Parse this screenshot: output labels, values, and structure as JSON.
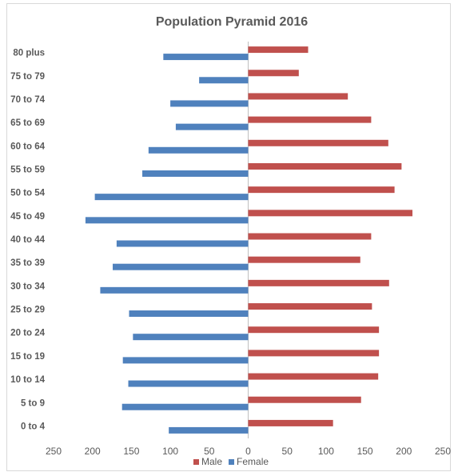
{
  "chart_data": {
    "type": "bar",
    "orientation": "horizontal",
    "title": "Population Pyramid 2016",
    "categories": [
      "0 to 4",
      "5 to 9",
      "10 to 14",
      "15 to 19",
      "20 to 24",
      "25 to 29",
      "30 to 34",
      "35 to 39",
      "40 to 44",
      "45 to 49",
      "50 to 54",
      "55 to 59",
      "60 to 64",
      "65 to 69",
      "70 to 74",
      "75 to 79",
      "80 plus"
    ],
    "series": [
      {
        "name": "Male",
        "color": "#c0504d",
        "values": [
          109,
          145,
          167,
          168,
          168,
          159,
          181,
          144,
          158,
          211,
          188,
          197,
          180,
          158,
          128,
          65,
          77
        ]
      },
      {
        "name": "Female",
        "color": "#4f81bd",
        "values": [
          -102,
          -162,
          -154,
          -161,
          -148,
          -153,
          -190,
          -174,
          -169,
          -209,
          -197,
          -136,
          -128,
          -93,
          -100,
          -63,
          -109
        ]
      }
    ],
    "xlim": [
      -250,
      250
    ],
    "xticks": [
      {
        "value": -250,
        "label": "250"
      },
      {
        "value": -200,
        "label": "200"
      },
      {
        "value": -150,
        "label": "150"
      },
      {
        "value": -100,
        "label": "100"
      },
      {
        "value": -50,
        "label": "50"
      },
      0,
      50,
      100,
      150,
      200,
      250
    ],
    "legend": "bottom"
  }
}
